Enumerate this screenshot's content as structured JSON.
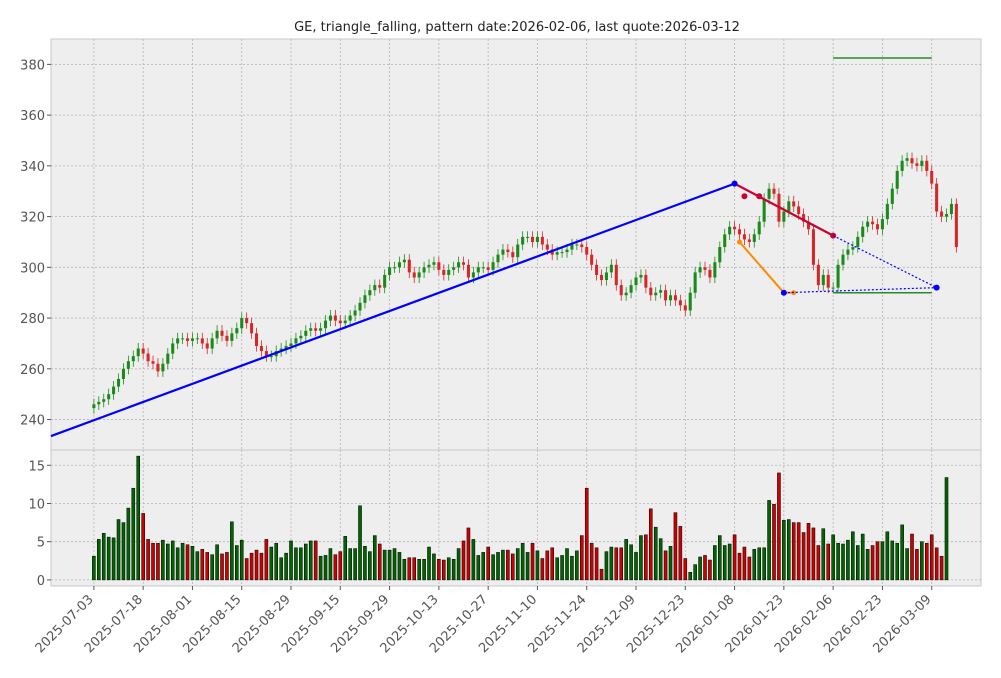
{
  "chart_data": {
    "type": "candlestick",
    "title": "GE, triangle_falling, pattern date:2026-02-06, last quote:2026-03-12",
    "grid": true,
    "colors": {
      "up": "#1a8a1a",
      "down": "#d62728",
      "volume_up": "#006400",
      "volume_down": "#cc0000",
      "blue_line": "#0000ff",
      "red_line": "#cc0033",
      "orange_line": "#ff8c00",
      "green_line": "#2a8a2a",
      "panel_bg": "#eeeeee"
    },
    "price_axis": {
      "ylim": [
        228,
        390
      ],
      "ticks": [
        240,
        260,
        280,
        300,
        320,
        340,
        360,
        380
      ]
    },
    "volume_axis": {
      "ylim": [
        -0.8,
        17
      ],
      "ticks": [
        0,
        5,
        10,
        15
      ]
    },
    "x_ticks": [
      "2025-07-03",
      "2025-07-18",
      "2025-08-01",
      "2025-08-15",
      "2025-08-29",
      "2025-09-15",
      "2025-09-29",
      "2025-10-13",
      "2025-10-27",
      "2025-11-10",
      "2025-11-24",
      "2025-12-09",
      "2025-12-23",
      "2026-01-08",
      "2026-01-23",
      "2026-02-06",
      "2026-02-23",
      "2026-03-09"
    ],
    "x_tick_index": [
      0,
      10,
      20,
      30,
      40,
      50,
      60,
      70,
      80,
      90,
      100,
      110,
      120,
      130,
      140,
      150,
      160,
      170
    ],
    "x_range": [
      -8.7,
      180
    ],
    "closes": [
      246,
      247,
      248,
      250,
      253,
      256,
      260,
      263,
      265,
      268,
      266,
      263,
      262,
      259,
      262,
      266,
      270,
      272,
      272,
      271,
      272,
      272,
      270,
      268,
      272,
      275,
      273,
      271,
      274,
      276,
      280,
      278,
      274,
      269,
      267,
      265,
      265,
      267,
      268,
      269,
      270,
      272,
      273,
      275,
      276,
      275,
      276,
      279,
      281,
      279,
      278,
      279,
      281,
      283,
      286,
      289,
      291,
      293,
      292,
      297,
      300,
      300,
      302,
      303,
      298,
      296,
      298,
      300,
      301,
      302,
      299,
      297,
      299,
      300,
      302,
      301,
      296,
      298,
      300,
      300,
      299,
      302,
      305,
      307,
      306,
      304,
      309,
      312,
      312,
      310,
      312,
      309,
      307,
      305,
      306,
      306,
      307,
      309,
      309,
      308,
      305,
      301,
      297,
      295,
      298,
      301,
      293,
      289,
      290,
      293,
      296,
      297,
      292,
      289,
      290,
      291,
      287,
      289,
      287,
      285,
      283,
      290,
      298,
      300,
      299,
      296,
      302,
      308,
      313,
      316,
      315,
      313,
      311,
      310,
      313,
      318,
      327,
      331,
      329,
      318,
      322,
      326,
      324,
      321,
      318,
      315,
      301,
      293,
      297,
      292,
      292,
      301,
      305,
      307,
      308,
      312,
      316,
      318,
      317,
      315,
      319,
      325,
      331,
      338,
      342,
      343,
      341,
      340,
      342,
      338,
      333,
      322,
      320,
      321,
      325,
      308
    ],
    "volumes": [
      3.1,
      5.3,
      6.1,
      5.6,
      5.5,
      7.9,
      7.5,
      9.4,
      12,
      16.2,
      8.7,
      5.3,
      4.8,
      4.8,
      5.2,
      4.7,
      5.1,
      4.2,
      4.8,
      4.6,
      4.4,
      3.7,
      4,
      3.6,
      3.3,
      4.6,
      3.4,
      3.6,
      7.6,
      4.5,
      5.2,
      2.8,
      3.5,
      3.9,
      3.5,
      5.3,
      4.3,
      4.8,
      2.9,
      3.5,
      5.1,
      4.2,
      4.2,
      4.7,
      5.1,
      5.1,
      3.1,
      3.2,
      4.1,
      3.3,
      3.7,
      5.7,
      4.1,
      4.1,
      9.7,
      4.4,
      3.7,
      5.8,
      4.7,
      3.9,
      3.9,
      4.1,
      3.6,
      2.7,
      2.9,
      2.9,
      2.7,
      2.7,
      4.3,
      3.4,
      2.7,
      2.6,
      2.9,
      2.7,
      4.1,
      5.1,
      6.8,
      5.3,
      3.2,
      3.6,
      4.3,
      3.3,
      3.6,
      3.9,
      3.9,
      3.4,
      4.1,
      4.8,
      3.6,
      4.8,
      3.8,
      2.8,
      3.8,
      4.2,
      2.9,
      3.2,
      4.1,
      3.1,
      3.8,
      5.8,
      12,
      4.8,
      4.2,
      1.4,
      3.7,
      4.3,
      4.2,
      4.2,
      5.3,
      4.6,
      3.6,
      5.8,
      5.9,
      9.3,
      6.9,
      5.4,
      3.8,
      4.4,
      8.8,
      7,
      2.8,
      1,
      2,
      3,
      3.2,
      2.6,
      4.5,
      5.8,
      4.5,
      4.7,
      5.9,
      3.5,
      4.3,
      3,
      4,
      4.2,
      4.2,
      10.4,
      9.9,
      14,
      7.8,
      7.9,
      7.5,
      7.5,
      6.2,
      7.4,
      6.8,
      4.5,
      6.7,
      4.7,
      5.9,
      4.8,
      4.7,
      5.2,
      6.3,
      4.5,
      6,
      4,
      4.5,
      5,
      5,
      6.3,
      5.1,
      4.8,
      7.2,
      4.1,
      6,
      4,
      5,
      4.8,
      5.9,
      4.2,
      3.1,
      13.4
    ],
    "overlays": {
      "blue_line": [
        [
          -8.7,
          233.5
        ],
        [
          130,
          333
        ]
      ],
      "red_line": [
        [
          130,
          333
        ],
        [
          150,
          312.5
        ]
      ],
      "red_line_points": [
        [
          130,
          333
        ],
        [
          132,
          328
        ],
        [
          135,
          328
        ],
        [
          150,
          312.5
        ]
      ],
      "orange_line": [
        [
          131,
          310
        ],
        [
          140,
          290
        ],
        [
          142,
          290
        ]
      ],
      "blue_dotted_upper": [
        [
          150,
          312.5
        ],
        [
          171,
          292
        ]
      ],
      "blue_dotted_lower": [
        [
          140,
          290
        ],
        [
          171,
          292
        ]
      ],
      "green_upper": [
        [
          150,
          382.5
        ],
        [
          170,
          382.5
        ]
      ],
      "green_lower": [
        [
          150,
          290
        ],
        [
          170,
          290
        ]
      ]
    }
  }
}
